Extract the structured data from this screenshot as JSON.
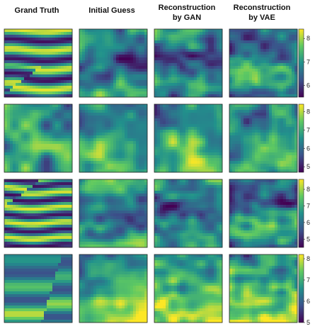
{
  "chart_data": {
    "type": "heatmap",
    "colormap": "viridis",
    "columns": [
      "Grand Truth",
      "Initial Guess",
      "Reconstruction\nby GAN",
      "Reconstruction\nby VAE"
    ],
    "rows": [
      {
        "colorbar_ticks": [
          6,
          7,
          8
        ],
        "vmin": 5.5,
        "vmax": 8.4
      },
      {
        "colorbar_ticks": [
          5,
          6,
          7,
          8
        ],
        "vmin": 4.7,
        "vmax": 8.4
      },
      {
        "colorbar_ticks": [
          5,
          6,
          7,
          8
        ],
        "vmin": 4.5,
        "vmax": 8.6
      },
      {
        "colorbar_ticks": [
          5,
          6,
          7,
          8
        ],
        "vmin": 5.0,
        "vmax": 8.2
      }
    ]
  }
}
